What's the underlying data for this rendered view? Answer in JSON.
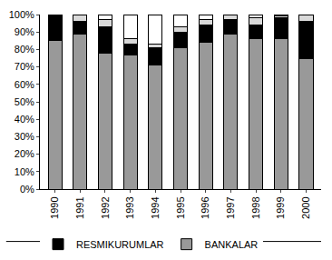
{
  "chart_data": {
    "type": "bar",
    "stacked": true,
    "grid": false,
    "legend": "bottom",
    "categories": [
      "1990",
      "1991",
      "1992",
      "1993",
      "1994",
      "1995",
      "1996",
      "1997",
      "1998",
      "1999",
      "2000"
    ],
    "series": [
      {
        "name": "BANKALAR",
        "color": "#999999",
        "values": [
          85,
          89,
          78,
          77,
          71,
          81,
          84,
          89,
          86,
          86,
          75
        ]
      },
      {
        "name": "RESMIKURUMLAR",
        "color": "#000000",
        "values": [
          14,
          7,
          15,
          6,
          10,
          9,
          10,
          8,
          8,
          12,
          21
        ]
      },
      {
        "color": "#d9d9d9",
        "values": [
          0,
          4,
          4,
          3,
          2,
          3,
          3,
          3,
          4,
          1,
          4
        ]
      },
      {
        "color": "#ffffff",
        "values": [
          1,
          0,
          3,
          14,
          17,
          7,
          3,
          0,
          2,
          1,
          0
        ]
      }
    ],
    "ylim": [
      0,
      100
    ],
    "yticks": [
      {
        "value": 0,
        "label": "0%"
      },
      {
        "value": 10,
        "label": "10%"
      },
      {
        "value": 20,
        "label": "20%"
      },
      {
        "value": 30,
        "label": "30%"
      },
      {
        "value": 40,
        "label": "40%"
      },
      {
        "value": 50,
        "label": "50%"
      },
      {
        "value": 60,
        "label": "60%"
      },
      {
        "value": 70,
        "label": "70%"
      },
      {
        "value": 80,
        "label": "80%"
      },
      {
        "value": 90,
        "label": "90%"
      },
      {
        "value": 100,
        "label": "100%"
      }
    ]
  }
}
